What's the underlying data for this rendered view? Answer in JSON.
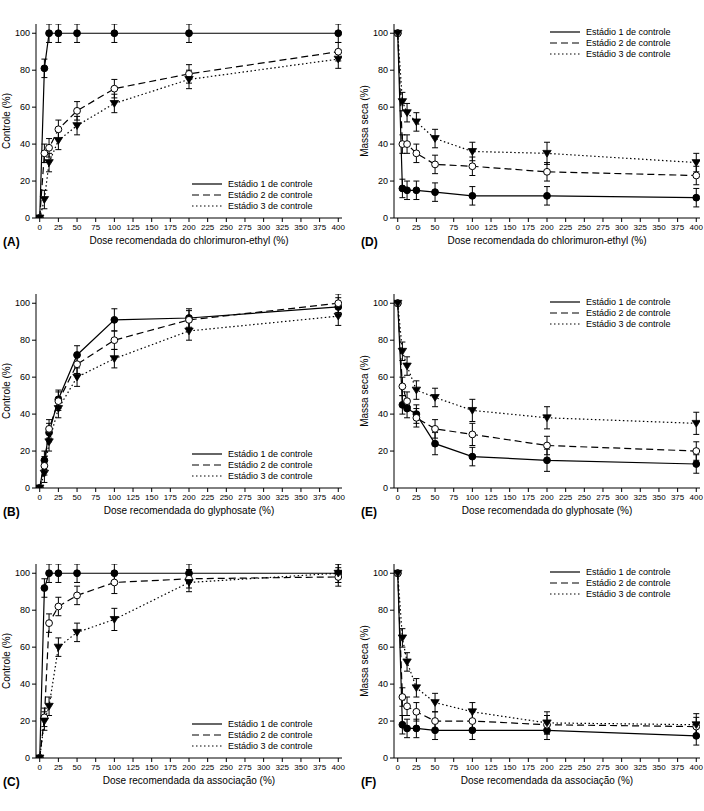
{
  "chart_data": [
    {
      "type": "line",
      "title": "(A)",
      "x_label": "Dose recomendada do chlorimuron-ethyl (%)",
      "y_label": "Controle (%)",
      "x": [
        0,
        6.25,
        12.5,
        25,
        50,
        100,
        200,
        400
      ],
      "xlim": [
        -5,
        405
      ],
      "ylim": [
        0,
        105
      ],
      "xticks": [
        0,
        25,
        50,
        75,
        100,
        125,
        150,
        175,
        200,
        225,
        250,
        275,
        300,
        325,
        350,
        375,
        400
      ],
      "yticks": [
        0,
        20,
        40,
        60,
        80,
        100
      ],
      "legend": "lower right",
      "series": [
        {
          "name": "Estádio 1 de controle",
          "color": "#000000",
          "marker": "circle",
          "line_style": "solid",
          "values": [
            0,
            81,
            100,
            100,
            100,
            100,
            100,
            100
          ],
          "errors": [
            0,
            5,
            5,
            5,
            5,
            5,
            5,
            5
          ]
        },
        {
          "name": "Estádio 2 de controle",
          "color": "#000000",
          "marker": "circle-open",
          "line_style": "dashed",
          "values": [
            0,
            35,
            38,
            48,
            58,
            70,
            78,
            90
          ],
          "errors": [
            0,
            5,
            5,
            5,
            5,
            5,
            5,
            5
          ]
        },
        {
          "name": "Estádio 3 de controle",
          "color": "#000000",
          "marker": "triangle-down",
          "line_style": "dotted",
          "values": [
            0,
            10,
            30,
            42,
            50,
            62,
            75,
            86
          ],
          "errors": [
            0,
            5,
            5,
            5,
            5,
            5,
            5,
            5
          ]
        }
      ]
    },
    {
      "type": "line",
      "title": "(B)",
      "x_label": "Dose recomendada do glyphosate (%)",
      "y_label": "Controle (%)",
      "x": [
        0,
        6.25,
        12.5,
        25,
        50,
        100,
        200,
        400
      ],
      "xlim": [
        -5,
        405
      ],
      "ylim": [
        0,
        105
      ],
      "xticks": [
        0,
        25,
        50,
        75,
        100,
        125,
        150,
        175,
        200,
        225,
        250,
        275,
        300,
        325,
        350,
        375,
        400
      ],
      "yticks": [
        0,
        20,
        40,
        60,
        80,
        100
      ],
      "legend": "lower right",
      "series": [
        {
          "name": "Estádio 1 de controle",
          "color": "#000000",
          "marker": "circle",
          "line_style": "solid",
          "values": [
            0,
            15,
            30,
            48,
            72,
            91,
            92,
            98
          ],
          "errors": [
            0,
            5,
            5,
            5,
            5,
            6,
            5,
            5
          ]
        },
        {
          "name": "Estádio 2 de controle",
          "color": "#000000",
          "marker": "circle-open",
          "line_style": "dashed",
          "values": [
            0,
            12,
            32,
            47,
            67,
            80,
            91,
            100
          ],
          "errors": [
            0,
            5,
            5,
            5,
            5,
            5,
            5,
            5
          ]
        },
        {
          "name": "Estádio 3 de controle",
          "color": "#000000",
          "marker": "triangle-down",
          "line_style": "dotted",
          "values": [
            0,
            8,
            25,
            43,
            60,
            70,
            85,
            93
          ],
          "errors": [
            0,
            5,
            5,
            5,
            5,
            5,
            5,
            5
          ]
        }
      ]
    },
    {
      "type": "line",
      "title": "(C)",
      "x_label": "Dose recomendada da associação (%)",
      "y_label": "Controle (%)",
      "x": [
        0,
        6.25,
        12.5,
        25,
        50,
        100,
        200,
        400
      ],
      "xlim": [
        -5,
        405
      ],
      "ylim": [
        0,
        105
      ],
      "xticks": [
        0,
        25,
        50,
        75,
        100,
        125,
        150,
        175,
        200,
        225,
        250,
        275,
        300,
        325,
        350,
        375,
        400
      ],
      "yticks": [
        0,
        20,
        40,
        60,
        80,
        100
      ],
      "legend": "lower right",
      "series": [
        {
          "name": "Estádio 1 de controle",
          "color": "#000000",
          "marker": "circle",
          "line_style": "solid",
          "values": [
            0,
            92,
            100,
            100,
            100,
            100,
            100,
            100
          ],
          "errors": [
            0,
            5,
            5,
            5,
            5,
            5,
            5,
            5
          ]
        },
        {
          "name": "Estádio 2 de controle",
          "color": "#000000",
          "marker": "circle-open",
          "line_style": "dashed",
          "values": [
            0,
            22,
            73,
            82,
            88,
            95,
            97,
            98
          ],
          "errors": [
            0,
            5,
            5,
            5,
            5,
            6,
            5,
            5
          ]
        },
        {
          "name": "Estádio 3 de controle",
          "color": "#000000",
          "marker": "triangle-down",
          "line_style": "dotted",
          "values": [
            0,
            20,
            28,
            60,
            68,
            75,
            95,
            100
          ],
          "errors": [
            0,
            5,
            5,
            5,
            5,
            6,
            5,
            5
          ]
        }
      ]
    },
    {
      "type": "line",
      "title": "(D)",
      "x_label": "Dose recomendada do chlorimuron-ethyl (%)",
      "y_label": "Massa seca (%)",
      "x": [
        0,
        6.25,
        12.5,
        25,
        50,
        100,
        200,
        400
      ],
      "xlim": [
        -5,
        405
      ],
      "ylim": [
        0,
        105
      ],
      "xticks": [
        0,
        25,
        50,
        75,
        100,
        125,
        150,
        175,
        200,
        225,
        250,
        275,
        300,
        325,
        350,
        375,
        400
      ],
      "yticks": [
        0,
        20,
        40,
        60,
        80,
        100
      ],
      "legend": "upper right",
      "series": [
        {
          "name": "Estádio 1 de controle",
          "color": "#000000",
          "marker": "circle",
          "line_style": "solid",
          "values": [
            100,
            16,
            15,
            15,
            14,
            12,
            12,
            11
          ],
          "errors": [
            0,
            5,
            5,
            5,
            5,
            5,
            5,
            5
          ]
        },
        {
          "name": "Estádio 2 de controle",
          "color": "#000000",
          "marker": "circle-open",
          "line_style": "dashed",
          "values": [
            100,
            40,
            40,
            35,
            29,
            28,
            25,
            23
          ],
          "errors": [
            0,
            5,
            5,
            5,
            5,
            5,
            5,
            5
          ]
        },
        {
          "name": "Estádio 3 de controle",
          "color": "#000000",
          "marker": "triangle-down",
          "line_style": "dotted",
          "values": [
            100,
            63,
            57,
            52,
            43,
            36,
            35,
            30
          ],
          "errors": [
            0,
            5,
            5,
            5,
            5,
            5,
            6,
            5
          ]
        }
      ]
    },
    {
      "type": "line",
      "title": "(E)",
      "x_label": "Dose recomendada do glyphosate (%)",
      "y_label": "Massa seca (%)",
      "x": [
        0,
        6.25,
        12.5,
        25,
        50,
        100,
        200,
        400
      ],
      "xlim": [
        -5,
        405
      ],
      "ylim": [
        0,
        105
      ],
      "xticks": [
        0,
        25,
        50,
        75,
        100,
        125,
        150,
        175,
        200,
        225,
        250,
        275,
        300,
        325,
        350,
        375,
        400
      ],
      "yticks": [
        0,
        20,
        40,
        60,
        80,
        100
      ],
      "legend": "upper right",
      "series": [
        {
          "name": "Estádio 1 de controle",
          "color": "#000000",
          "marker": "circle",
          "line_style": "solid",
          "values": [
            100,
            45,
            43,
            40,
            24,
            17,
            15,
            13
          ],
          "errors": [
            0,
            5,
            5,
            5,
            6,
            5,
            6,
            5
          ]
        },
        {
          "name": "Estádio 2 de controle",
          "color": "#000000",
          "marker": "circle-open",
          "line_style": "dashed",
          "values": [
            100,
            55,
            47,
            38,
            32,
            29,
            23,
            20
          ],
          "errors": [
            0,
            5,
            5,
            5,
            5,
            6,
            5,
            5
          ]
        },
        {
          "name": "Estádio 3 de controle",
          "color": "#000000",
          "marker": "triangle-down",
          "line_style": "dotted",
          "values": [
            100,
            74,
            66,
            53,
            49,
            42,
            38,
            35
          ],
          "errors": [
            0,
            5,
            5,
            5,
            5,
            6,
            6,
            6
          ]
        }
      ]
    },
    {
      "type": "line",
      "title": "(F)",
      "x_label": "Dose recomendada da associação (%)",
      "y_label": "Massa seca (%)",
      "x": [
        0,
        6.25,
        12.5,
        25,
        50,
        100,
        200,
        400
      ],
      "xlim": [
        -5,
        405
      ],
      "ylim": [
        0,
        105
      ],
      "xticks": [
        0,
        25,
        50,
        75,
        100,
        125,
        150,
        175,
        200,
        225,
        250,
        275,
        300,
        325,
        350,
        375,
        400
      ],
      "yticks": [
        0,
        20,
        40,
        60,
        80,
        100
      ],
      "legend": "upper right",
      "series": [
        {
          "name": "Estádio 1 de controle",
          "color": "#000000",
          "marker": "circle",
          "line_style": "solid",
          "values": [
            100,
            18,
            16,
            16,
            15,
            15,
            15,
            12
          ],
          "errors": [
            0,
            5,
            5,
            5,
            5,
            5,
            5,
            5
          ]
        },
        {
          "name": "Estádio 2 de controle",
          "color": "#000000",
          "marker": "circle-open",
          "line_style": "dashed",
          "values": [
            100,
            33,
            28,
            25,
            20,
            20,
            18,
            17
          ],
          "errors": [
            0,
            5,
            5,
            5,
            5,
            5,
            5,
            5
          ]
        },
        {
          "name": "Estádio 3 de controle",
          "color": "#000000",
          "marker": "triangle-down",
          "line_style": "dotted",
          "values": [
            100,
            65,
            52,
            38,
            30,
            25,
            19,
            18
          ],
          "errors": [
            0,
            5,
            5,
            5,
            5,
            5,
            6,
            6
          ]
        }
      ]
    }
  ]
}
